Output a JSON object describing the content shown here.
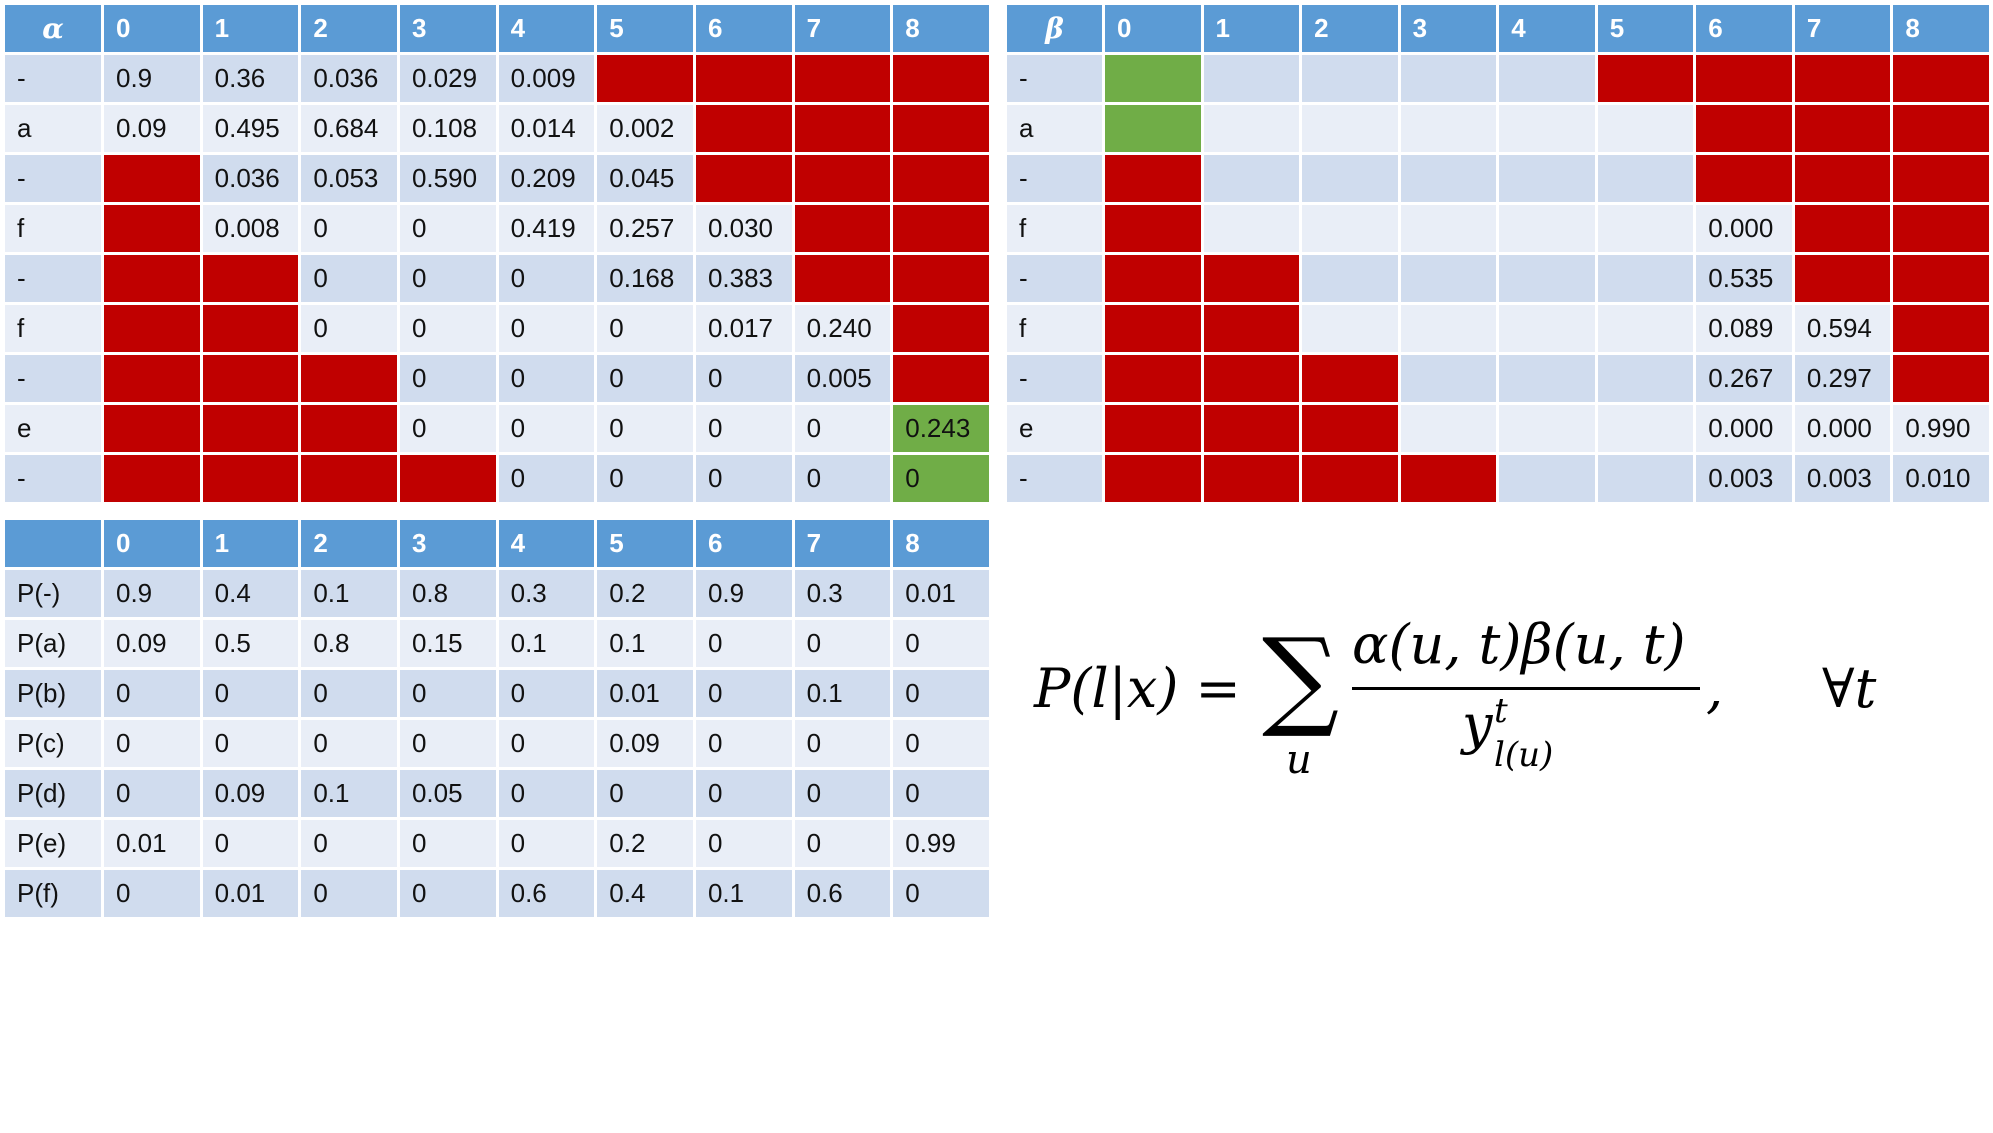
{
  "alpha": {
    "symbol": "α",
    "columns": [
      "0",
      "1",
      "2",
      "3",
      "4",
      "5",
      "6",
      "7",
      "8"
    ],
    "rows": [
      {
        "label": "-",
        "cells": [
          "0.9",
          "0.36",
          "0.036",
          "0.029",
          "0.009",
          "#R",
          "#R",
          "#R",
          "#R"
        ]
      },
      {
        "label": "a",
        "cells": [
          "0.09",
          "0.495",
          "0.684",
          "0.108",
          "0.014",
          "0.002",
          "#R",
          "#R",
          "#R"
        ]
      },
      {
        "label": "-",
        "cells": [
          "#R",
          "0.036",
          "0.053",
          "0.590",
          "0.209",
          "0.045",
          "#R",
          "#R",
          "#R"
        ]
      },
      {
        "label": "f",
        "cells": [
          "#R",
          "0.008",
          "0",
          "0",
          "0.419",
          "0.257",
          "0.030",
          "#R",
          "#R"
        ]
      },
      {
        "label": "-",
        "cells": [
          "#R",
          "#R",
          "0",
          "0",
          "0",
          "0.168",
          "0.383",
          "#R",
          "#R"
        ]
      },
      {
        "label": "f",
        "cells": [
          "#R",
          "#R",
          "0",
          "0",
          "0",
          "0",
          "0.017",
          "0.240",
          "#R"
        ]
      },
      {
        "label": "-",
        "cells": [
          "#R",
          "#R",
          "#R",
          "0",
          "0",
          "0",
          "0",
          "0.005",
          "#R"
        ]
      },
      {
        "label": "e",
        "cells": [
          "#R",
          "#R",
          "#R",
          "0",
          "0",
          "0",
          "0",
          "0",
          "#G0.243"
        ]
      },
      {
        "label": "-",
        "cells": [
          "#R",
          "#R",
          "#R",
          "#R",
          "0",
          "0",
          "0",
          "0",
          "#G0"
        ]
      }
    ]
  },
  "beta": {
    "symbol": "β",
    "columns": [
      "0",
      "1",
      "2",
      "3",
      "4",
      "5",
      "6",
      "7",
      "8"
    ],
    "rows": [
      {
        "label": "-",
        "cells": [
          "#G",
          "",
          "",
          "",
          "",
          "#R",
          "#R",
          "#R",
          "#R"
        ]
      },
      {
        "label": "a",
        "cells": [
          "#G",
          "",
          "",
          "",
          "",
          "",
          "#R",
          "#R",
          "#R"
        ]
      },
      {
        "label": "-",
        "cells": [
          "#R",
          "",
          "",
          "",
          "",
          "",
          "#R",
          "#R",
          "#R"
        ]
      },
      {
        "label": "f",
        "cells": [
          "#R",
          "",
          "",
          "",
          "",
          "",
          "0.000",
          "#R",
          "#R"
        ]
      },
      {
        "label": "-",
        "cells": [
          "#R",
          "#R",
          "",
          "",
          "",
          "",
          "0.535",
          "#R",
          "#R"
        ]
      },
      {
        "label": "f",
        "cells": [
          "#R",
          "#R",
          "",
          "",
          "",
          "",
          "0.089",
          "0.594",
          "#R"
        ]
      },
      {
        "label": "-",
        "cells": [
          "#R",
          "#R",
          "#R",
          "",
          "",
          "",
          "0.267",
          "0.297",
          "#R"
        ]
      },
      {
        "label": "e",
        "cells": [
          "#R",
          "#R",
          "#R",
          "",
          "",
          "",
          "0.000",
          "0.000",
          "0.990"
        ]
      },
      {
        "label": "-",
        "cells": [
          "#R",
          "#R",
          "#R",
          "#R",
          "",
          "",
          "0.003",
          "0.003",
          "0.010"
        ]
      }
    ]
  },
  "probabilities": {
    "columns": [
      "0",
      "1",
      "2",
      "3",
      "4",
      "5",
      "6",
      "7",
      "8"
    ],
    "rows": [
      {
        "label": "P(-)",
        "cells": [
          "0.9",
          "0.4",
          "0.1",
          "0.8",
          "0.3",
          "0.2",
          "0.9",
          "0.3",
          "0.01"
        ]
      },
      {
        "label": "P(a)",
        "cells": [
          "0.09",
          "0.5",
          "0.8",
          "0.15",
          "0.1",
          "0.1",
          "0",
          "0",
          "0"
        ]
      },
      {
        "label": "P(b)",
        "cells": [
          "0",
          "0",
          "0",
          "0",
          "0",
          "0.01",
          "0",
          "0.1",
          "0"
        ]
      },
      {
        "label": "P(c)",
        "cells": [
          "0",
          "0",
          "0",
          "0",
          "0",
          "0.09",
          "0",
          "0",
          "0"
        ]
      },
      {
        "label": "P(d)",
        "cells": [
          "0",
          "0.09",
          "0.1",
          "0.05",
          "0",
          "0",
          "0",
          "0",
          "0"
        ]
      },
      {
        "label": "P(e)",
        "cells": [
          "0.01",
          "0",
          "0",
          "0",
          "0",
          "0.2",
          "0",
          "0",
          "0.99"
        ]
      },
      {
        "label": "P(f)",
        "cells": [
          "0",
          "0.01",
          "0",
          "0",
          "0.6",
          "0.4",
          "0.1",
          "0.6",
          "0"
        ]
      }
    ]
  },
  "colors": {
    "header": "#5b9bd5",
    "row_odd": "#d0dcee",
    "row_even": "#e9eef7",
    "blocked_cell": "#c00000",
    "highlight_cell": "#70ad47"
  },
  "formula": {
    "lhs": "P(l|x) =",
    "sum_symbol": "∑",
    "sum_index": "u",
    "numerator": "α(u, t)β(u, t)",
    "denominator_base": "y",
    "denominator_sup": "t",
    "denominator_sub": "l(u)",
    "comma": ",",
    "quantifier": "∀t"
  }
}
